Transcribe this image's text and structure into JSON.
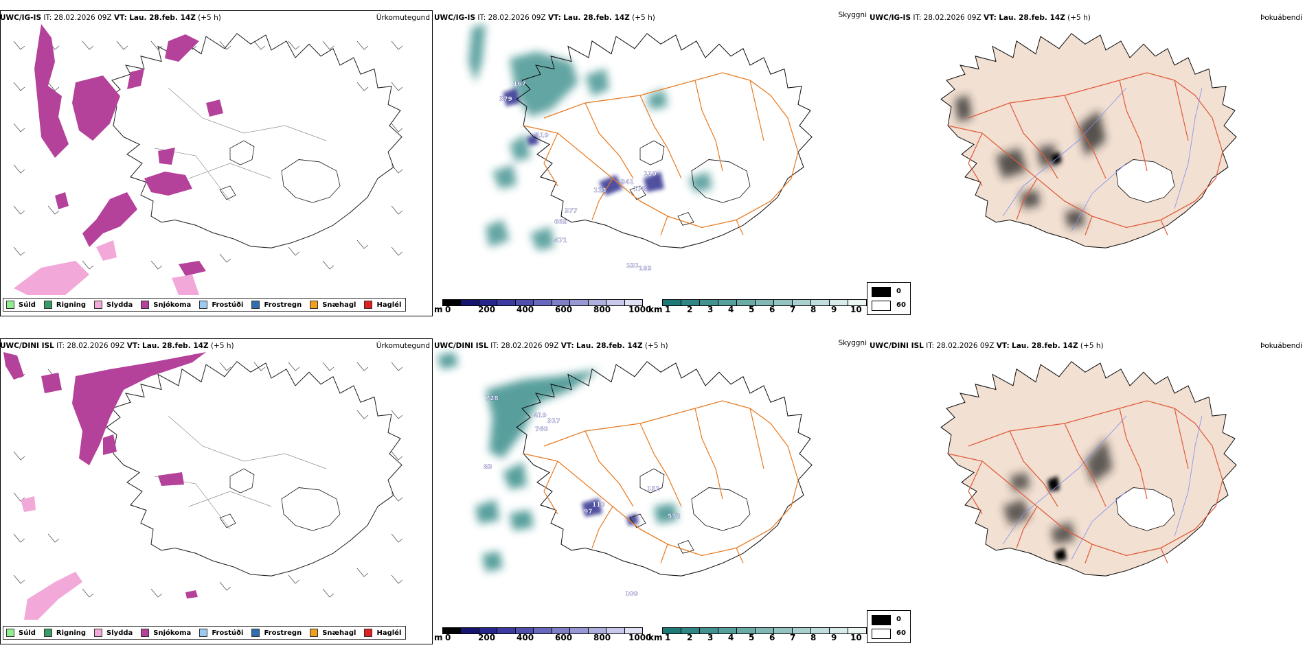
{
  "rows": [
    {
      "model": "UWC/IG-IS",
      "it_label": "IT:",
      "it_value": "28.02.2026 09Z",
      "vt_label": "VT:",
      "vt_value": "Lau. 28.feb. 14Z",
      "lead": "(+5 h)",
      "cloud_labels": [
        "379",
        "167",
        "119",
        "341",
        "110",
        "113",
        "178",
        "377",
        "669",
        "471",
        "231",
        "193"
      ]
    },
    {
      "model": "UWC/DINI ISL",
      "it_label": "IT:",
      "it_value": "28.02.2026 09Z",
      "vt_label": "VT:",
      "vt_value": "Lau. 28.feb. 14Z",
      "lead": "(+5 h)",
      "cloud_labels": [
        "728",
        "419",
        "317",
        "760",
        "83",
        "110",
        "97",
        "152",
        "572",
        "100"
      ]
    }
  ],
  "panel_titles": {
    "precip": "Úrkomutegund",
    "cloud": "Skyggni",
    "fog": "Þokuábendi"
  },
  "precip_legend": [
    {
      "label": "Súld",
      "color": "#90ee90"
    },
    {
      "label": "Rigning",
      "color": "#3a9a6a"
    },
    {
      "label": "Slydda",
      "color": "#f2a8d8"
    },
    {
      "label": "Snjókoma",
      "color": "#b5429a"
    },
    {
      "label": "Frostúði",
      "color": "#9ccaf0"
    },
    {
      "label": "Frostregn",
      "color": "#2f6fb0"
    },
    {
      "label": "Snæhagl",
      "color": "#f0a020"
    },
    {
      "label": "Haglél",
      "color": "#e02020"
    }
  ],
  "ceiling_colorbar": {
    "unit": "m",
    "ticks": [
      "0",
      "200",
      "400",
      "600",
      "800",
      "1000"
    ],
    "colors": [
      "#000000",
      "#151570",
      "#26268c",
      "#3a3aa0",
      "#5050b0",
      "#6868bd",
      "#8080c8",
      "#9898d4",
      "#b0b0df",
      "#c8c8ea",
      "#e0e0f4"
    ]
  },
  "visibility_colorbar": {
    "unit": "km",
    "ticks": [
      "1",
      "2",
      "3",
      "4",
      "5",
      "6",
      "7",
      "8",
      "9",
      "10"
    ],
    "colors": [
      "#1d7a76",
      "#2e8784",
      "#429390",
      "#569f9c",
      "#6aaba8",
      "#7fb8b5",
      "#94c4c2",
      "#aad1cf",
      "#c0dedd",
      "#d6ebea",
      "#ecf6f5"
    ]
  },
  "fog_legend": [
    {
      "label": "0",
      "color": "#000000"
    },
    {
      "label": "60",
      "color": "#ffffff"
    }
  ],
  "colors": {
    "roads": "#e87a20",
    "fog_land": "#f2e0d2",
    "fog_roads": "#e05a3a",
    "rivers": "#8090f0",
    "snow": "#b5429a",
    "sleet": "#f2a8d8",
    "cloud_teal": "#2e8784",
    "cloud_blue": "#303090"
  }
}
